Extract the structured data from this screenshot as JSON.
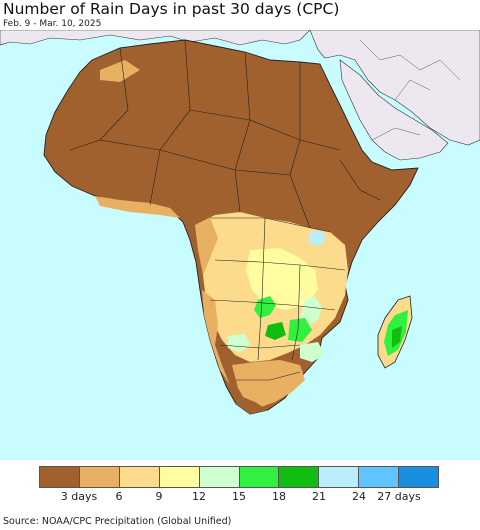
{
  "header": {
    "title": "Number of Rain Days in past 30 days (CPC)",
    "date_range": "Feb. 9 - Mar. 10, 2025"
  },
  "map": {
    "region": "Africa",
    "ocean_color": "#c8fcff",
    "nonfocus_land_color": "#ede8ef",
    "border_color": "#222222"
  },
  "legend": {
    "colors": [
      "#a0612e",
      "#e8b062",
      "#fcdc8c",
      "#fffda0",
      "#cfffcf",
      "#30f040",
      "#10bd10",
      "#baeeff",
      "#60c5ff",
      "#1a8fe0"
    ],
    "labels": [
      "3 days",
      "6",
      "9",
      "12",
      "15",
      "18",
      "21",
      "24",
      "27 days"
    ]
  },
  "footer": {
    "source": "Source: NOAA/CPC Precipitation (Global Unified)"
  }
}
